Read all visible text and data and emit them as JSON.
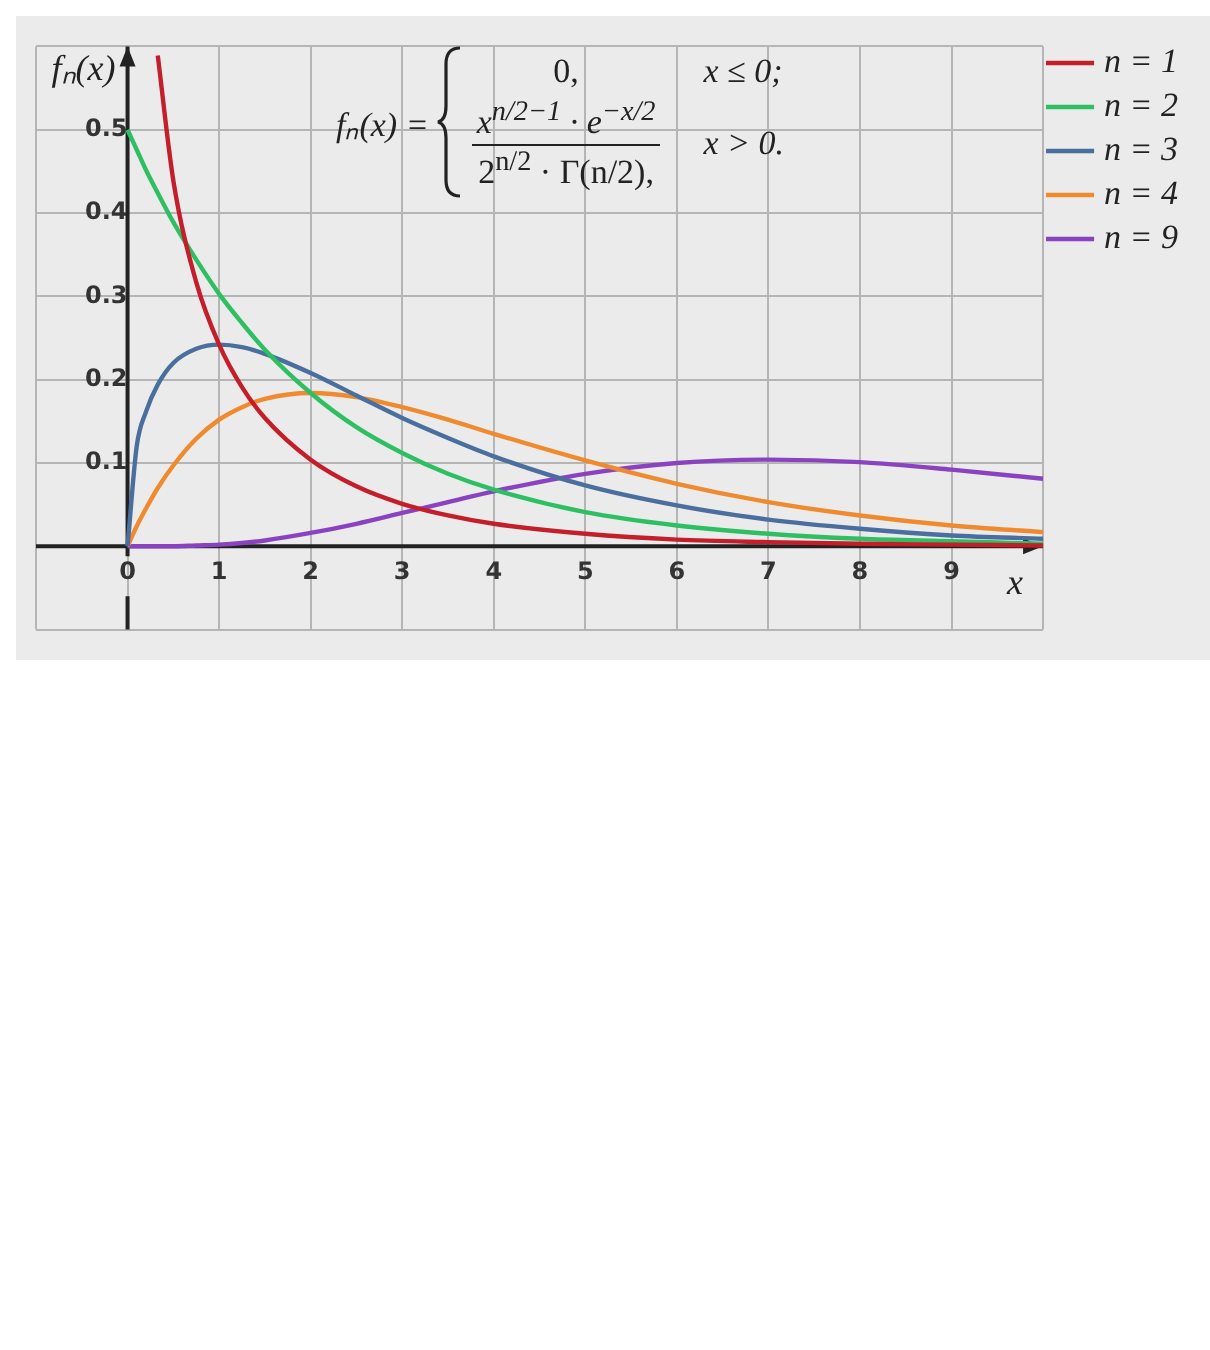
{
  "chart_data": {
    "type": "line",
    "xlabel": "x",
    "ylabel": "fₙ(x)",
    "x": [
      0,
      0.1,
      0.2,
      0.33,
      0.5,
      0.75,
      1,
      1.25,
      1.5,
      2,
      2.5,
      3,
      3.5,
      4,
      5,
      6,
      7,
      8,
      9,
      10
    ],
    "series": [
      {
        "name": "n = 1",
        "color": "#c41e2a",
        "values": [
          null,
          null,
          null,
          0.589,
          0.439,
          0.317,
          0.242,
          0.191,
          0.154,
          0.104,
          0.072,
          0.051,
          0.037,
          0.027,
          0.015,
          0.008,
          0.005,
          0.003,
          0.002,
          0.001
        ]
      },
      {
        "name": "n = 2",
        "color": "#2fbf63",
        "values": [
          0.5,
          0.476,
          0.452,
          0.424,
          0.389,
          0.344,
          0.303,
          0.268,
          0.236,
          0.184,
          0.143,
          0.112,
          0.087,
          0.068,
          0.041,
          0.025,
          0.015,
          0.009,
          0.006,
          0.003
        ]
      },
      {
        "name": "n = 3",
        "color": "#4a6f9f",
        "values": [
          0,
          0.12,
          0.161,
          0.194,
          0.22,
          0.237,
          0.242,
          0.239,
          0.231,
          0.208,
          0.181,
          0.154,
          0.13,
          0.108,
          0.073,
          0.049,
          0.032,
          0.021,
          0.013,
          0.009
        ]
      },
      {
        "name": "n = 4",
        "color": "#f08a2e",
        "values": [
          0,
          0.024,
          0.045,
          0.07,
          0.097,
          0.129,
          0.152,
          0.167,
          0.177,
          0.184,
          0.179,
          0.167,
          0.152,
          0.135,
          0.103,
          0.075,
          0.053,
          0.037,
          0.025,
          0.017
        ]
      },
      {
        "name": "n = 9",
        "color": "#8b42c0",
        "values": [
          0,
          0,
          0,
          0,
          0,
          0.001,
          0.002,
          0.004,
          0.007,
          0.016,
          0.027,
          0.04,
          0.053,
          0.066,
          0.087,
          0.1,
          0.104,
          0.101,
          0.092,
          0.081
        ]
      }
    ],
    "xlim": [
      -1,
      10
    ],
    "ylim": [
      -0.1,
      0.6
    ],
    "xticks": [
      {
        "value": -1,
        "label": null
      },
      0,
      1,
      2,
      3,
      4,
      5,
      6,
      7,
      8,
      9,
      {
        "value": 10,
        "label": null
      }
    ],
    "yticks": [
      {
        "value": -0.1,
        "label": null
      },
      {
        "value": 0,
        "label": null
      },
      0.1,
      0.2,
      0.3,
      0.4,
      0.5,
      {
        "value": 0.6,
        "label": null
      }
    ],
    "grid": true,
    "legend": "right",
    "marker": "none",
    "line_style": "solid",
    "annotations": [
      "fₙ(x) =",
      "0,",
      "x ≤ 0;",
      "x$^{n/2−1}$ · e$^{−x/2}$",
      "2$^{n/2}$ · Γ(n/2),",
      "x > 0."
    ]
  }
}
